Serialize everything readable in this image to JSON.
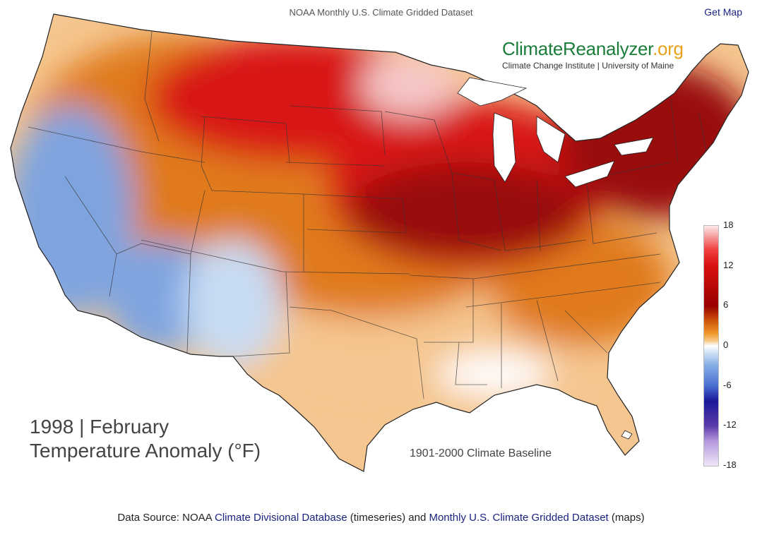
{
  "header": {
    "title": "NOAA Monthly U.S. Climate Gridded Dataset",
    "get_map_label": "Get Map"
  },
  "brand": {
    "name_part1": "ClimateReanalyzer",
    "name_part2": ".org",
    "subtitle": "Climate Change Institute | University of Maine"
  },
  "map": {
    "period": "1998 | February",
    "variable": "Temperature Anomaly (°F)",
    "baseline": "1901-2000 Climate Baseline",
    "anomaly_colors": {
      "strong_warm": "#9a0a0a",
      "warm": "#d81414",
      "moderate_warm": "#e07a1a",
      "mild_warm": "#f5c68f",
      "neutral": "#ffffff",
      "mild_cool": "#c7dcf3",
      "cool": "#7ea4e0"
    }
  },
  "legend": {
    "ticks": [
      "18",
      "12",
      "6",
      "0",
      "-6",
      "-12",
      "-18"
    ]
  },
  "footer": {
    "prefix": "Data Source: NOAA ",
    "link1": "Climate Divisional Database",
    "middle": " (timeseries) and ",
    "link2": "Monthly U.S. Climate Gridded Dataset",
    "suffix": " (maps)"
  }
}
